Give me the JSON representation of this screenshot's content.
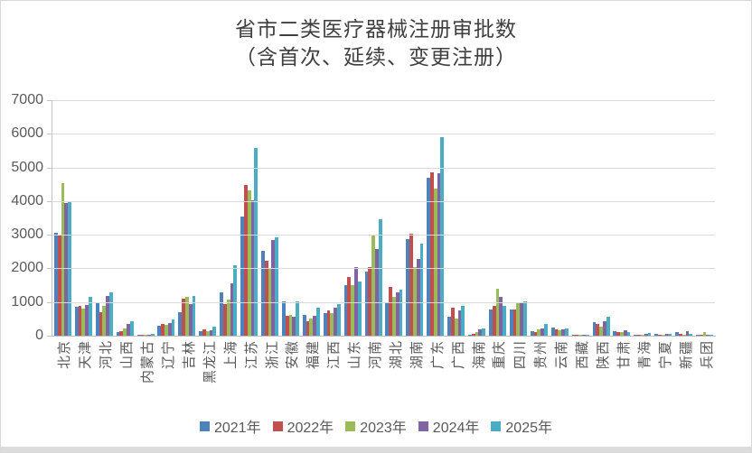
{
  "chart_data": {
    "type": "bar",
    "title_line1": "省市二类医疗器械注册审批数",
    "title_line2": "（含首次、延续、变更注册）",
    "ylim": [
      0,
      7000
    ],
    "ytick_step": 1000,
    "grid": true,
    "legend_position": "bottom",
    "axis_color": "#595959",
    "categories": [
      "北京",
      "天津",
      "河北",
      "山西",
      "内蒙古",
      "辽宁",
      "吉林",
      "黑龙江",
      "上海",
      "江苏",
      "浙江",
      "安徽",
      "福建",
      "江西",
      "山东",
      "河南",
      "湖北",
      "湖南",
      "广东",
      "广西",
      "海南",
      "重庆",
      "四川",
      "贵州",
      "云南",
      "西藏",
      "陕西",
      "甘肃",
      "青海",
      "宁夏",
      "新疆",
      "兵团"
    ],
    "series": [
      {
        "name": "2021年",
        "color": "#4F81BD",
        "values": [
          3050,
          850,
          980,
          120,
          30,
          300,
          710,
          140,
          1300,
          3530,
          2530,
          1010,
          610,
          680,
          1510,
          1910,
          1000,
          2880,
          4700,
          550,
          30,
          770,
          780,
          135,
          240,
          5,
          400,
          130,
          40,
          45,
          95,
          10
        ]
      },
      {
        "name": "2022年",
        "color": "#C0504D",
        "values": [
          3000,
          895,
          700,
          135,
          40,
          350,
          1090,
          175,
          940,
          4470,
          2230,
          580,
          430,
          740,
          1740,
          2050,
          1460,
          3030,
          4860,
          820,
          60,
          890,
          780,
          110,
          200,
          5,
          340,
          110,
          35,
          40,
          50,
          5
        ]
      },
      {
        "name": "2023年",
        "color": "#9BBB59",
        "values": [
          4520,
          800,
          875,
          205,
          35,
          335,
          1160,
          130,
          1060,
          4330,
          1990,
          610,
          510,
          660,
          1510,
          3010,
          1150,
          2050,
          4370,
          520,
          110,
          1400,
          955,
          180,
          165,
          5,
          260,
          95,
          30,
          35,
          40,
          100
        ]
      },
      {
        "name": "2024年",
        "color": "#8064A2",
        "values": [
          3950,
          910,
          1190,
          360,
          30,
          375,
          940,
          150,
          1560,
          4020,
          2840,
          570,
          580,
          820,
          2050,
          2580,
          1290,
          2280,
          4840,
          760,
          180,
          1160,
          1000,
          225,
          195,
          10,
          430,
          150,
          45,
          55,
          130,
          15
        ]
      },
      {
        "name": "2025年",
        "color": "#4BACC6",
        "values": [
          3980,
          1150,
          1300,
          420,
          50,
          490,
          1190,
          270,
          2090,
          5580,
          2910,
          1020,
          830,
          950,
          1600,
          3470,
          1380,
          2740,
          5910,
          875,
          205,
          875,
          1030,
          340,
          215,
          10,
          560,
          115,
          90,
          65,
          45,
          10
        ]
      }
    ]
  }
}
